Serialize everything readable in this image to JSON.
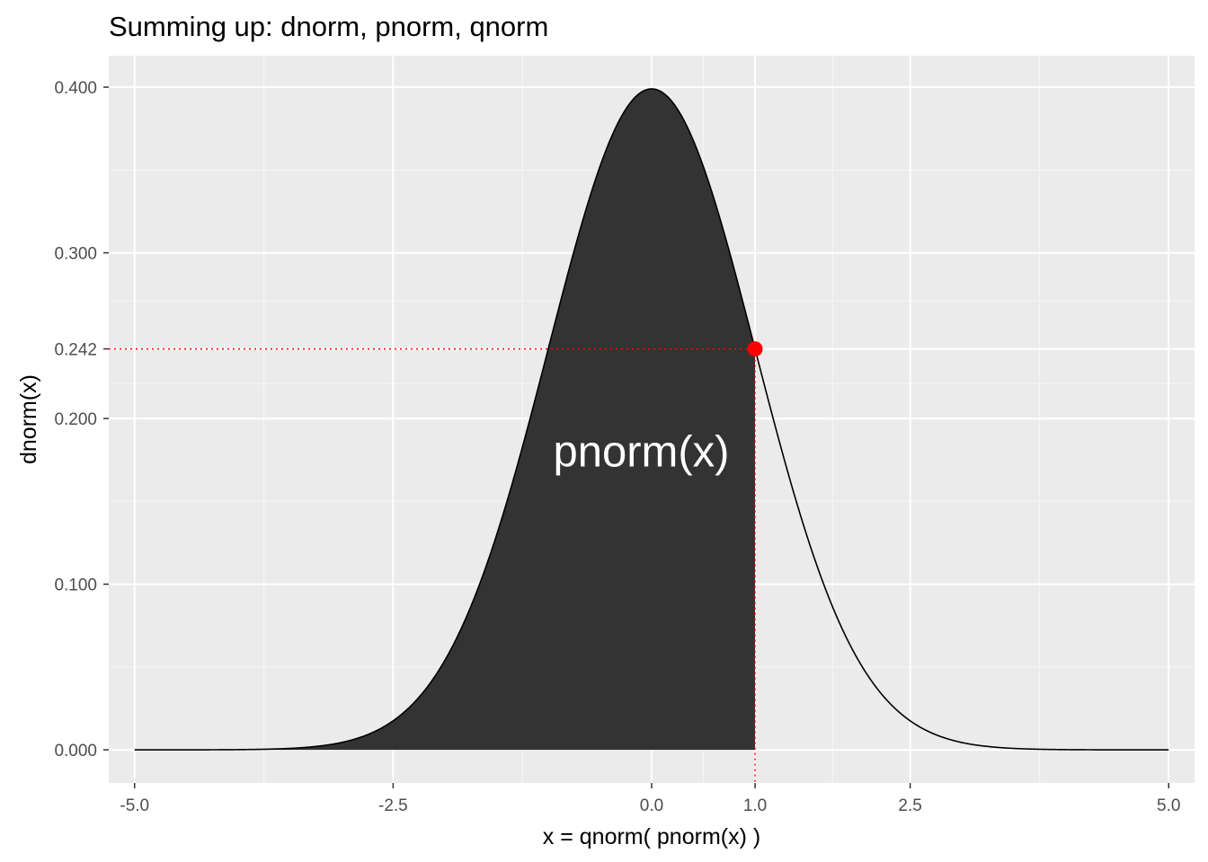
{
  "chart_data": {
    "type": "area",
    "title": "Summing up: dnorm,  pnorm,  qnorm",
    "xlabel": "x  =  qnorm( pnorm(x) )",
    "ylabel": "dnorm(x)",
    "xlim": [
      -5.25,
      5.25
    ],
    "ylim": [
      -0.02,
      0.419
    ],
    "x_ticks": [
      -5.0,
      -2.5,
      0.0,
      1.0,
      2.5,
      5.0
    ],
    "x_tick_labels": [
      "-5.0",
      "-2.5",
      "0.0",
      "1.0",
      "2.5",
      "5.0"
    ],
    "y_ticks": [
      0.0,
      0.1,
      0.2,
      0.242,
      0.3,
      0.4
    ],
    "y_tick_labels": [
      "0.000",
      "0.100",
      "0.200",
      "0.242",
      "0.300",
      "0.400"
    ],
    "grid": true,
    "curve": {
      "function": "dnorm",
      "x_range": [
        -5,
        5
      ],
      "color": "#000000",
      "points": [
        {
          "x": -5.0,
          "y": 0.0
        },
        {
          "x": -4.0,
          "y": 0.0001
        },
        {
          "x": -3.0,
          "y": 0.0044
        },
        {
          "x": -2.5,
          "y": 0.0175
        },
        {
          "x": -2.0,
          "y": 0.054
        },
        {
          "x": -1.5,
          "y": 0.1295
        },
        {
          "x": -1.0,
          "y": 0.242
        },
        {
          "x": -0.5,
          "y": 0.3521
        },
        {
          "x": 0.0,
          "y": 0.3989
        },
        {
          "x": 0.5,
          "y": 0.3521
        },
        {
          "x": 1.0,
          "y": 0.242
        },
        {
          "x": 1.5,
          "y": 0.1295
        },
        {
          "x": 2.0,
          "y": 0.054
        },
        {
          "x": 2.5,
          "y": 0.0175
        },
        {
          "x": 3.0,
          "y": 0.0044
        },
        {
          "x": 4.0,
          "y": 0.0001
        },
        {
          "x": 5.0,
          "y": 0.0
        }
      ]
    },
    "shaded_area": {
      "from": -5,
      "to": 1,
      "color": "#333333"
    },
    "highlight_point": {
      "x": 1.0,
      "y": 0.242,
      "color": "#ff0000"
    },
    "reference_lines": {
      "color": "#ff0000",
      "style": "dotted",
      "horizontal_y": 0.242,
      "vertical_x": 1.0
    },
    "annotation": {
      "text": "pnorm(x)",
      "x": -0.1,
      "y": 0.178,
      "color": "#ffffff"
    }
  },
  "colors": {
    "panel_background": "#ebebeb",
    "grid_major": "#ffffff",
    "grid_minor": "#f5f5f5",
    "tick_text": "#4d4d4d",
    "tick_mark": "#333333"
  }
}
